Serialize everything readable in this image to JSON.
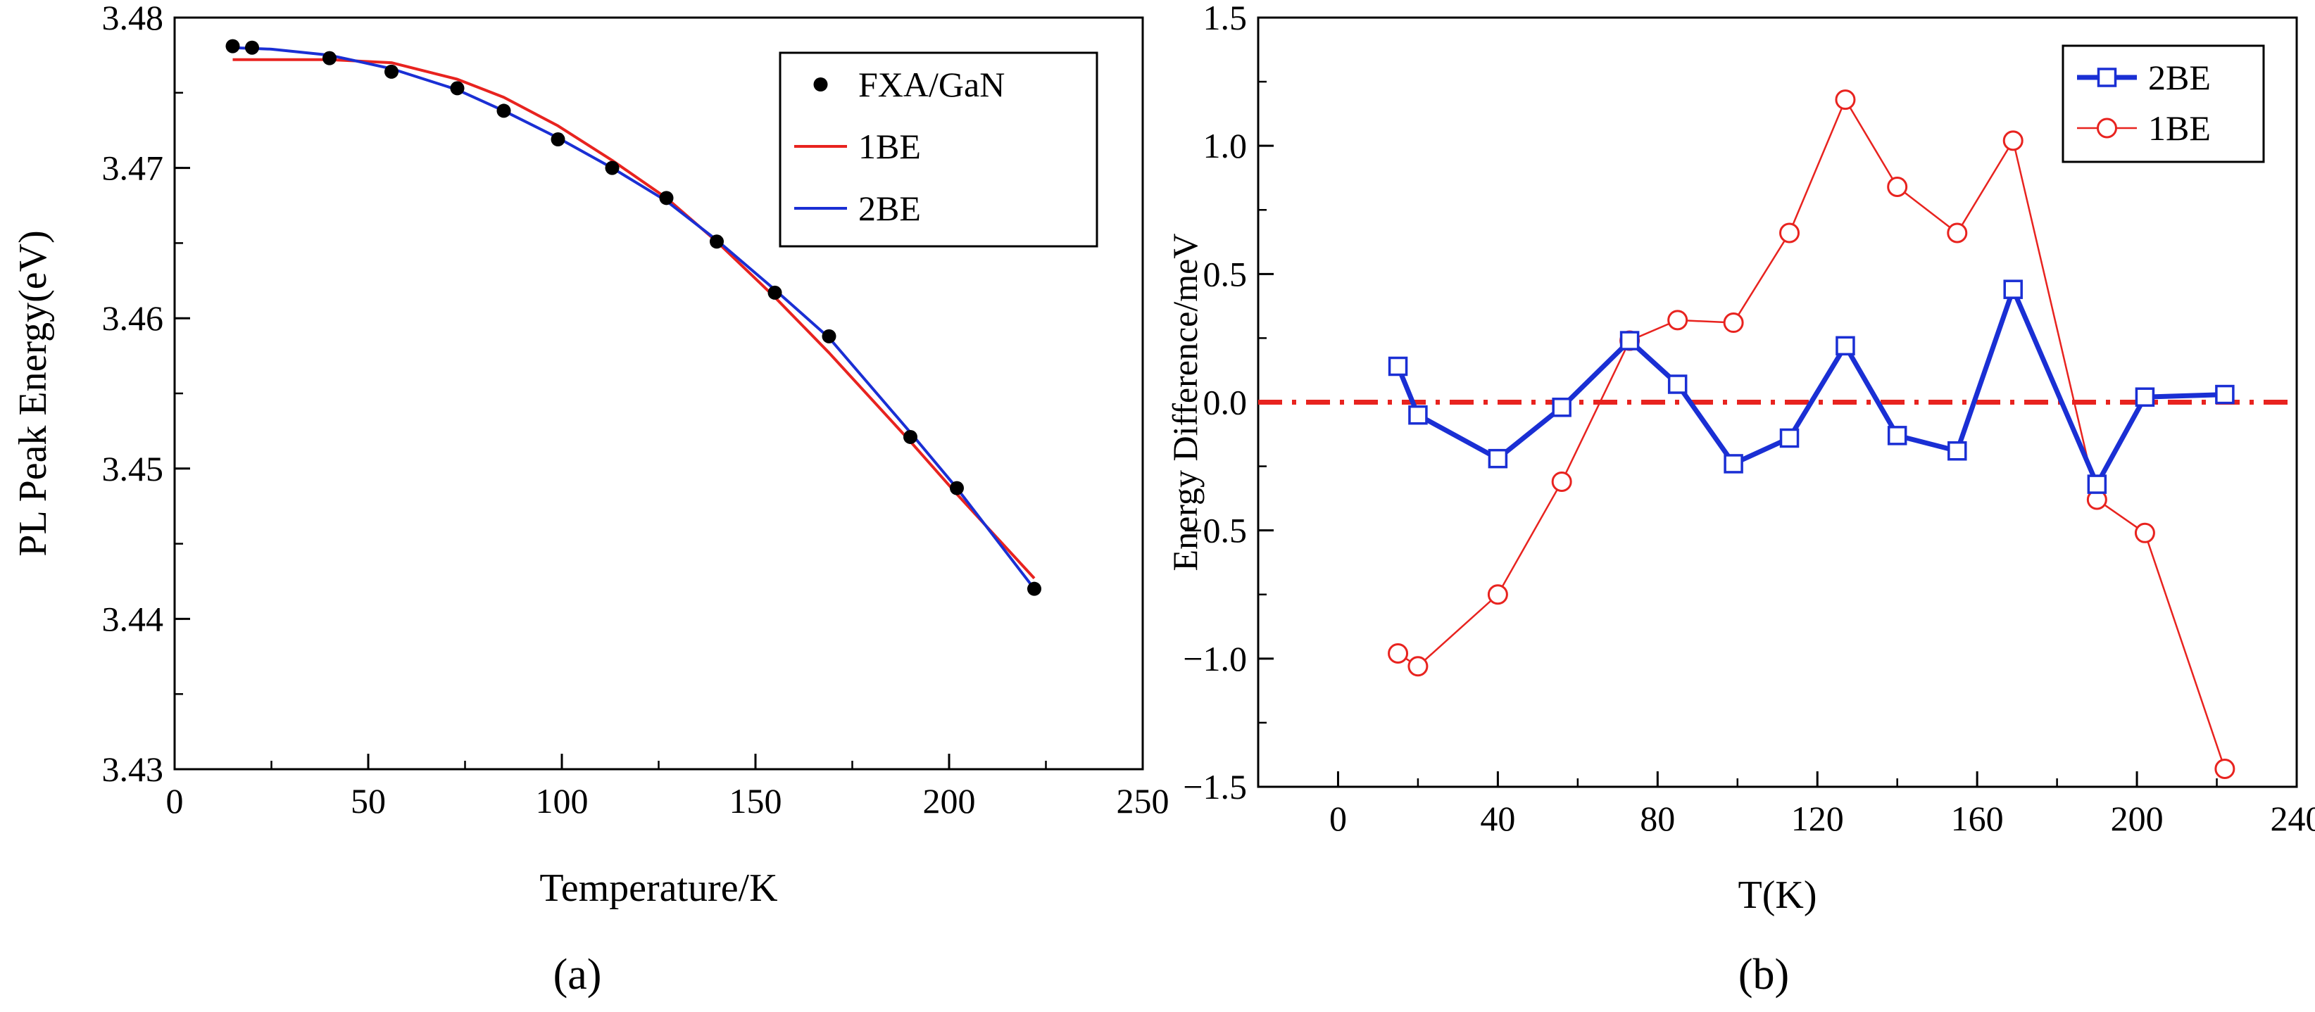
{
  "chart_data": [
    {
      "type": "scatter",
      "panel_label": "(a)",
      "xlabel": "Temperature/K",
      "ylabel": "PL Peak Energy(eV)",
      "xlim": [
        0,
        250
      ],
      "ylim": [
        3.43,
        3.48
      ],
      "xticks": [
        0,
        50,
        100,
        150,
        200,
        250
      ],
      "yticks": [
        3.43,
        3.44,
        3.45,
        3.46,
        3.47,
        3.48
      ],
      "xtick_labels": [
        "0",
        "50",
        "100",
        "150",
        "200",
        "250"
      ],
      "ytick_labels": [
        "3.43",
        "3.44",
        "3.45",
        "3.46",
        "3.47",
        "3.48"
      ],
      "legend_position": "top-right",
      "series": [
        {
          "name": "FXA/GaN",
          "kind": "points",
          "color": "#000000",
          "x": [
            15,
            20,
            40,
            56,
            73,
            85,
            99,
            113,
            127,
            140,
            155,
            169,
            190,
            202,
            222
          ],
          "y": [
            3.4781,
            3.478,
            3.4773,
            3.4764,
            3.4753,
            3.4738,
            3.4719,
            3.47,
            3.468,
            3.4651,
            3.4617,
            3.4588,
            3.4521,
            3.4487,
            3.442
          ]
        },
        {
          "name": "1BE",
          "kind": "line",
          "color": "#e8231f",
          "x": [
            15,
            25,
            40,
            56,
            73,
            85,
            99,
            113,
            127,
            140,
            155,
            169,
            190,
            202,
            222
          ],
          "y": [
            3.4772,
            3.4772,
            3.4772,
            3.477,
            3.4759,
            3.4747,
            3.4728,
            3.4705,
            3.468,
            3.4651,
            3.4614,
            3.4577,
            3.4518,
            3.4483,
            3.4427
          ]
        },
        {
          "name": "2BE",
          "kind": "line",
          "color": "#1a2fd4",
          "x": [
            15,
            25,
            40,
            56,
            73,
            85,
            99,
            113,
            127,
            140,
            155,
            169,
            190,
            202,
            222
          ],
          "y": [
            3.478,
            3.4779,
            3.4775,
            3.4766,
            3.4752,
            3.4738,
            3.472,
            3.47,
            3.4678,
            3.4652,
            3.4619,
            3.4587,
            3.4524,
            3.4487,
            3.442
          ]
        }
      ]
    },
    {
      "type": "line",
      "panel_label": "(b)",
      "xlabel": "T(K)",
      "ylabel": "Energy Difference/meV",
      "xlim": [
        -20,
        240
      ],
      "ylim": [
        -1.5,
        1.5
      ],
      "xticks": [
        0,
        40,
        80,
        120,
        160,
        200,
        240
      ],
      "yticks": [
        -1.5,
        -1.0,
        -0.5,
        0.0,
        0.5,
        1.0,
        1.5
      ],
      "xtick_labels": [
        "0",
        "40",
        "80",
        "120",
        "160",
        "200",
        "240"
      ],
      "ytick_labels": [
        "−1.5",
        "−1.0",
        "−0.5",
        "0.0",
        "0.5",
        "1.0",
        "1.5"
      ],
      "legend_position": "top-right",
      "zero_line": {
        "y": 0,
        "color": "#e8231f",
        "style": "dash-dot"
      },
      "series": [
        {
          "name": "2BE",
          "marker": "square",
          "color": "#1a2fd4",
          "x": [
            15,
            20,
            40,
            56,
            73,
            85,
            99,
            113,
            127,
            140,
            155,
            169,
            190,
            202,
            222
          ],
          "y": [
            0.14,
            -0.05,
            -0.22,
            -0.02,
            0.24,
            0.07,
            -0.24,
            -0.14,
            0.22,
            -0.13,
            -0.19,
            0.44,
            -0.32,
            0.02,
            0.03
          ]
        },
        {
          "name": "1BE",
          "marker": "circle",
          "color": "#e8231f",
          "x": [
            15,
            20,
            40,
            56,
            73,
            85,
            99,
            113,
            127,
            140,
            155,
            169,
            190,
            202,
            222
          ],
          "y": [
            -0.98,
            -1.03,
            -0.75,
            -0.31,
            0.24,
            0.32,
            0.31,
            0.66,
            1.18,
            0.84,
            0.66,
            1.02,
            -0.38,
            -0.51,
            -1.43
          ]
        }
      ]
    }
  ]
}
